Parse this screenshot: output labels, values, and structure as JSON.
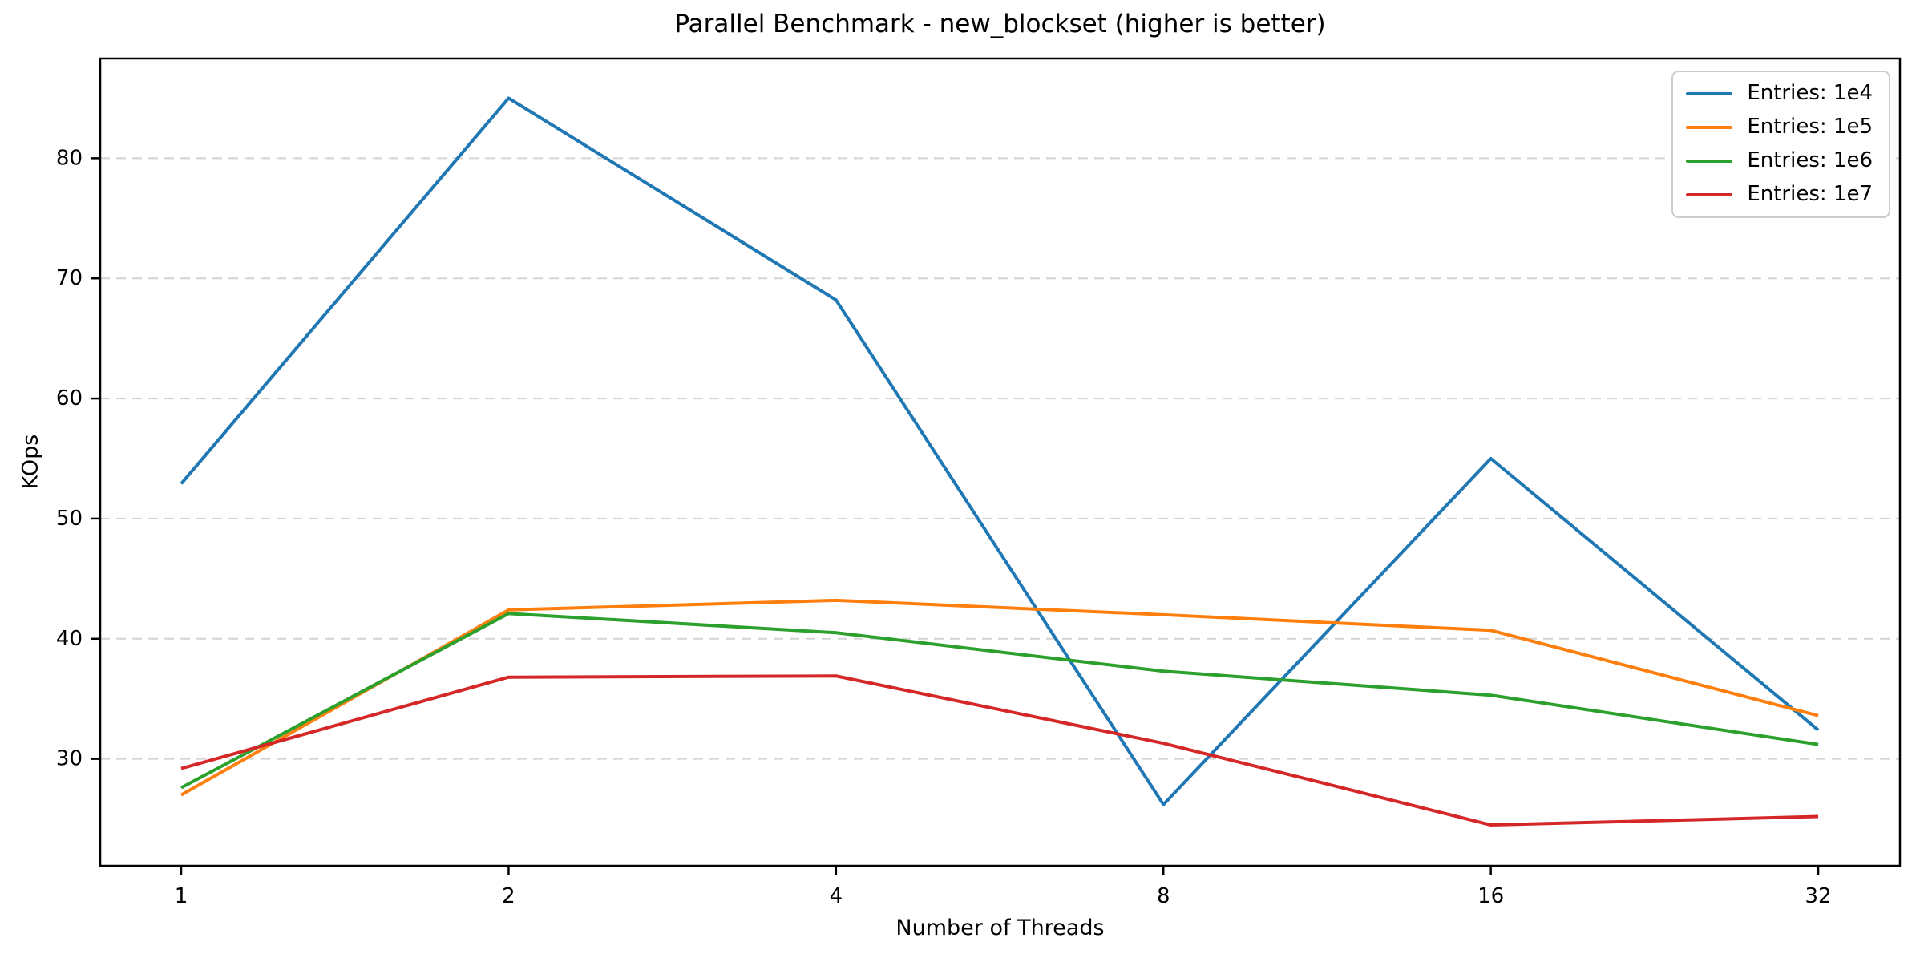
{
  "chart_data": {
    "type": "line",
    "title": "Parallel Benchmark - new_blockset (higher is better)",
    "xlabel": "Number of Threads",
    "ylabel": "KOps",
    "x_categories": [
      "1",
      "2",
      "4",
      "8",
      "16",
      "32"
    ],
    "x_scale": "log2-equal-spacing",
    "yticks": [
      30,
      40,
      50,
      60,
      70,
      80
    ],
    "ylim": [
      21.1,
      88.3
    ],
    "grid": {
      "horizontal": true,
      "style": "dashed",
      "color": "#d4d4d4"
    },
    "legend": {
      "position": "upper-right"
    },
    "series": [
      {
        "name": "Entries: 1e4",
        "color": "#1f77b4",
        "values": [
          52.9,
          85.0,
          68.2,
          26.2,
          55.0,
          32.4
        ]
      },
      {
        "name": "Entries: 1e5",
        "color": "#ff7f0e",
        "values": [
          27.0,
          42.4,
          43.2,
          42.0,
          40.7,
          33.6
        ]
      },
      {
        "name": "Entries: 1e6",
        "color": "#2ca02c",
        "values": [
          27.6,
          42.1,
          40.5,
          37.3,
          35.3,
          31.2
        ]
      },
      {
        "name": "Entries: 1e7",
        "color": "#d62728",
        "values": [
          29.2,
          36.8,
          36.9,
          31.3,
          24.5,
          25.2
        ]
      }
    ]
  }
}
